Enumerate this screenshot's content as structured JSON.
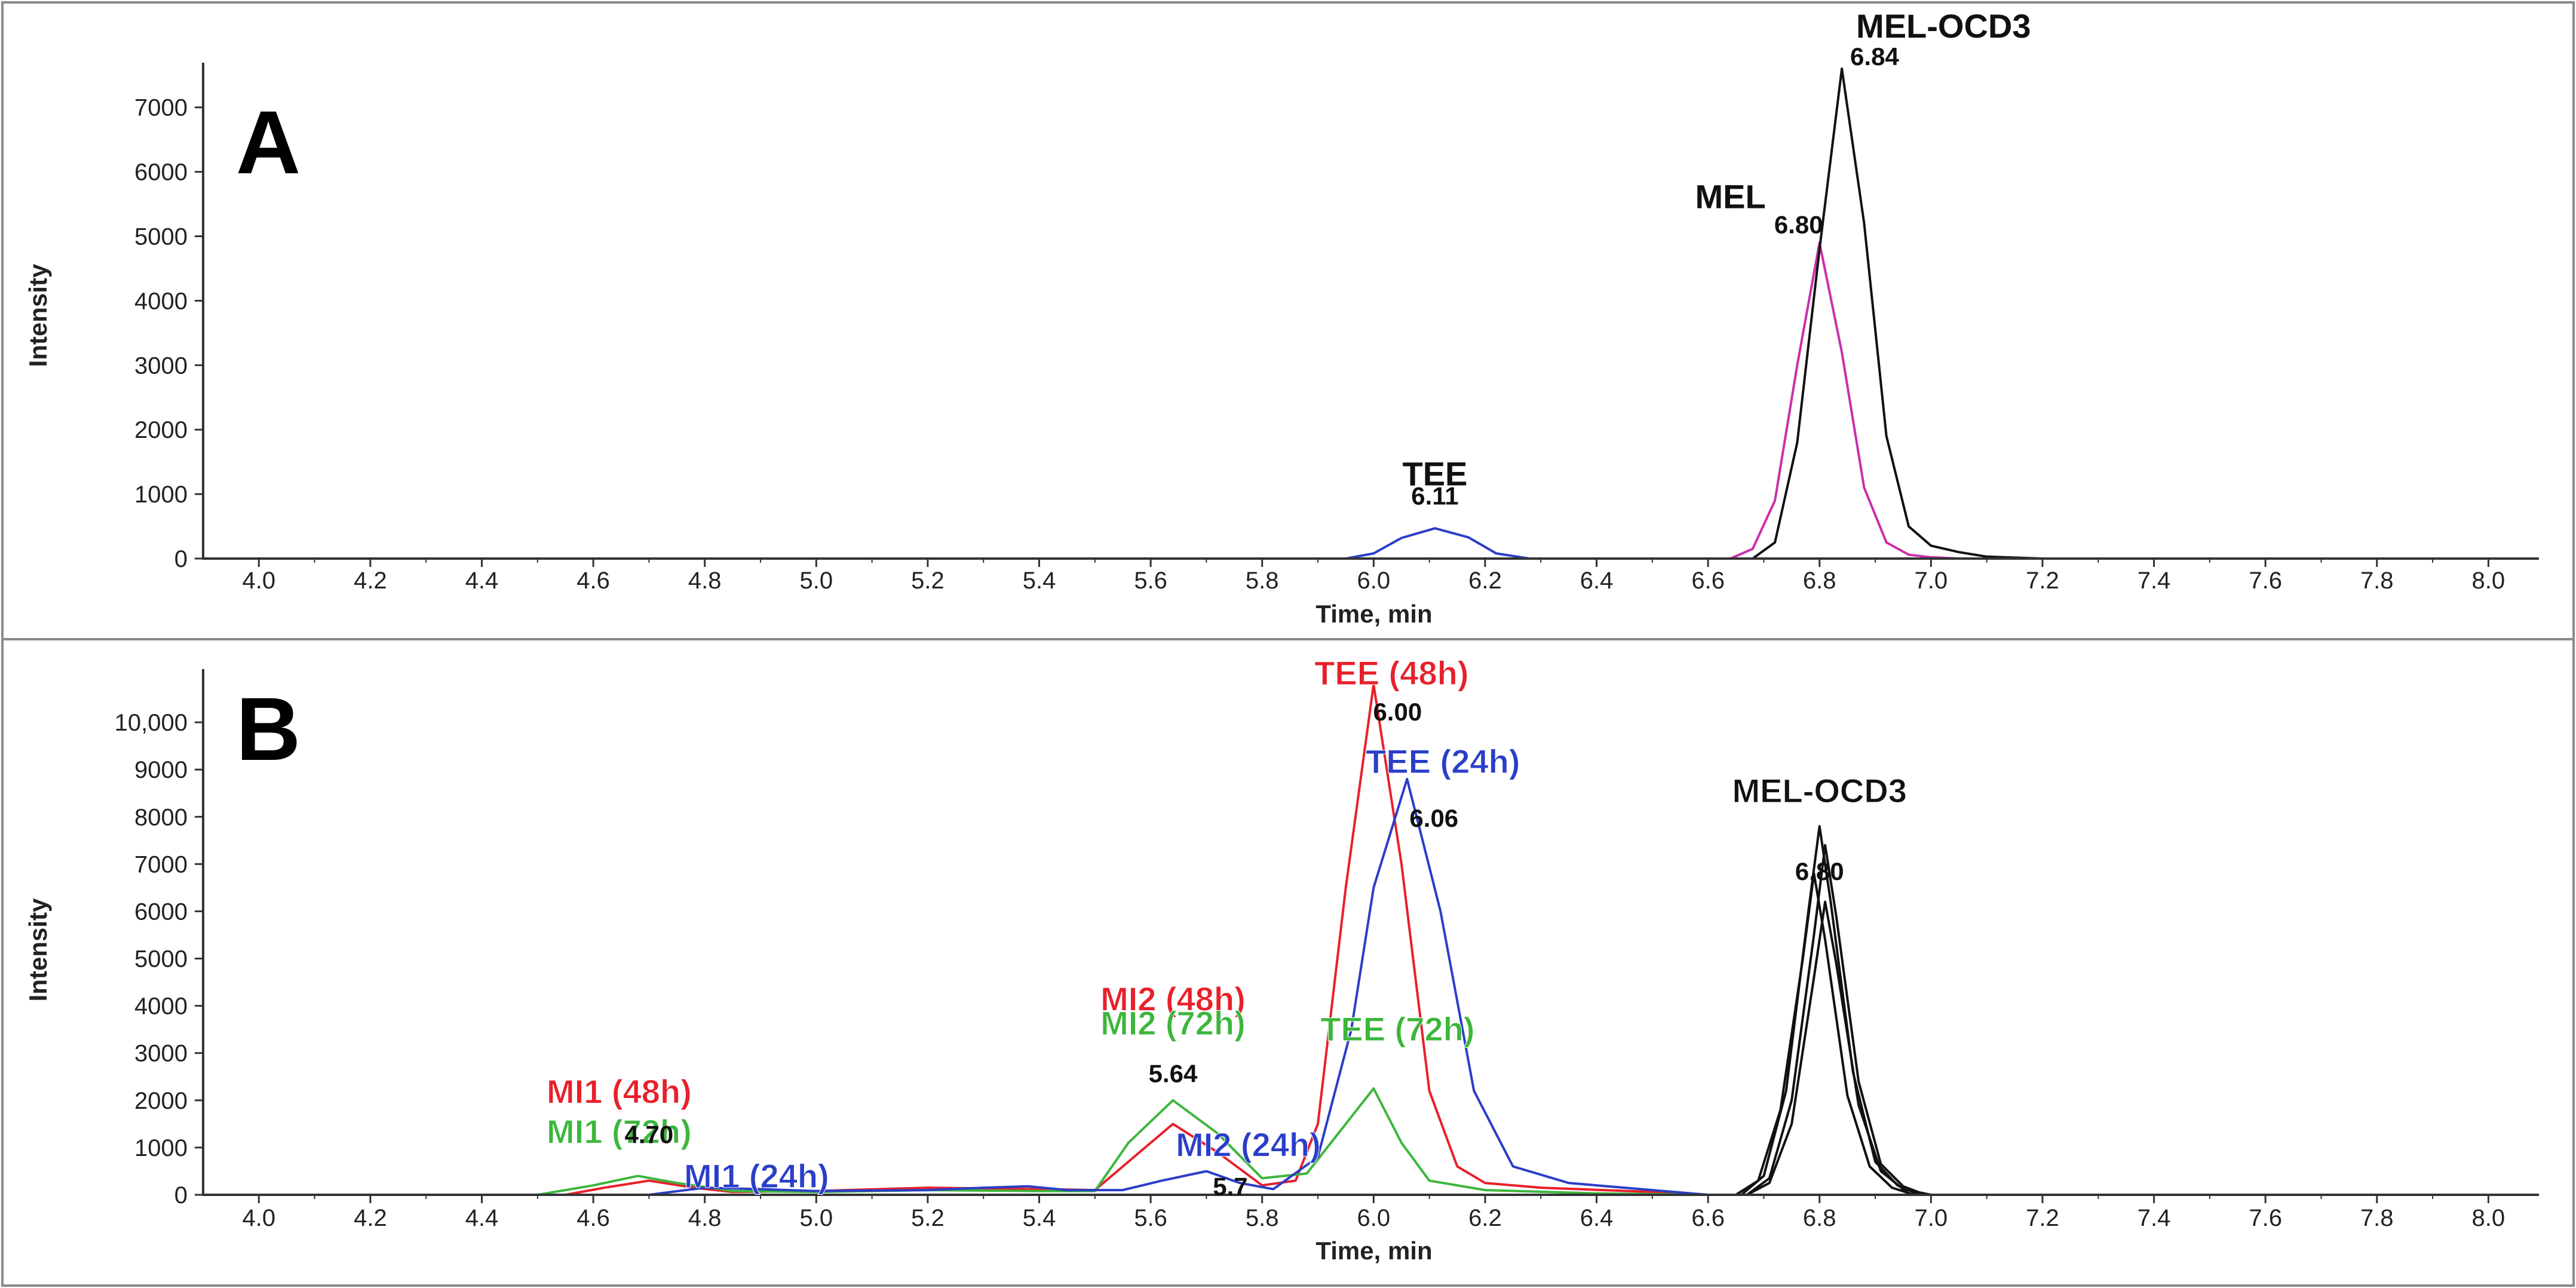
{
  "chart_data": [
    {
      "type": "line",
      "panel_label": "A",
      "xlabel": "Time, min",
      "ylabel": "Intensity",
      "xlim": [
        3.9,
        8.08
      ],
      "ylim": [
        0,
        7600
      ],
      "x_ticks": [
        "4.0",
        "4.2",
        "4.4",
        "4.6",
        "4.8",
        "5.0",
        "5.2",
        "5.4",
        "5.6",
        "5.8",
        "6.0",
        "6.2",
        "6.4",
        "6.6",
        "6.8",
        "7.0",
        "7.2",
        "7.4",
        "7.6",
        "7.8",
        "8.0"
      ],
      "y_ticks": [
        "0",
        "1000",
        "2000",
        "3000",
        "4000",
        "5000",
        "6000",
        "7000"
      ],
      "y_tick_values": [
        0,
        1000,
        2000,
        3000,
        4000,
        5000,
        6000,
        7000
      ],
      "series": [
        {
          "name": "MEL",
          "color": "#cc2fa8",
          "x": [
            3.9,
            6.64,
            6.68,
            6.72,
            6.76,
            6.8,
            6.84,
            6.88,
            6.92,
            6.96,
            7.0,
            7.05,
            8.08
          ],
          "y": [
            0,
            0,
            150,
            900,
            3000,
            4900,
            3200,
            1100,
            250,
            60,
            20,
            0,
            0
          ]
        },
        {
          "name": "MEL-OCD3",
          "color": "#111111",
          "x": [
            3.9,
            6.68,
            6.72,
            6.76,
            6.8,
            6.84,
            6.88,
            6.92,
            6.96,
            7.0,
            7.05,
            7.1,
            7.2,
            8.08
          ],
          "y": [
            0,
            0,
            250,
            1800,
            4800,
            7600,
            5200,
            1900,
            500,
            200,
            100,
            30,
            0,
            0
          ]
        },
        {
          "name": "TEE",
          "color": "#2a3ec8",
          "x": [
            3.9,
            5.95,
            6.0,
            6.05,
            6.11,
            6.17,
            6.22,
            6.28,
            8.08
          ],
          "y": [
            0,
            0,
            80,
            320,
            470,
            330,
            80,
            0,
            0
          ]
        }
      ],
      "annotations": [
        {
          "text": "MEL-OCD3",
          "rt": "6.84",
          "color": "#111111",
          "x": 6.84,
          "y": 7600
        },
        {
          "text": "MEL",
          "rt": "6.80",
          "color": "#111111",
          "x": 6.8,
          "y": 4900
        },
        {
          "text": "TEE",
          "rt": "6.11",
          "color": "#111111",
          "x": 6.11,
          "y": 470
        }
      ]
    },
    {
      "type": "line",
      "panel_label": "B",
      "xlabel": "Time, min",
      "ylabel": "Intensity",
      "xlim": [
        3.9,
        8.08
      ],
      "ylim": [
        0,
        11000
      ],
      "x_ticks": [
        "4.0",
        "4.2",
        "4.4",
        "4.6",
        "4.8",
        "5.0",
        "5.2",
        "5.4",
        "5.6",
        "5.8",
        "6.0",
        "6.2",
        "6.4",
        "6.6",
        "6.8",
        "7.0",
        "7.2",
        "7.4",
        "7.6",
        "7.8",
        "8.0"
      ],
      "y_ticks": [
        "0",
        "1000",
        "2000",
        "3000",
        "4000",
        "5000",
        "6000",
        "7000",
        "8000",
        "9000",
        "10,000"
      ],
      "y_tick_values": [
        0,
        1000,
        2000,
        3000,
        4000,
        5000,
        6000,
        7000,
        8000,
        9000,
        10000
      ],
      "series": [
        {
          "name": "48h",
          "color": "#e8202a",
          "x": [
            3.9,
            4.55,
            4.62,
            4.7,
            4.78,
            4.85,
            5.0,
            5.2,
            5.4,
            5.5,
            5.56,
            5.64,
            5.72,
            5.8,
            5.86,
            5.9,
            5.95,
            6.0,
            6.05,
            6.1,
            6.15,
            6.2,
            6.3,
            6.5,
            6.6,
            8.08
          ],
          "y": [
            0,
            0,
            150,
            300,
            150,
            60,
            80,
            150,
            120,
            100,
            700,
            1500,
            900,
            200,
            300,
            1500,
            6500,
            10800,
            7000,
            2200,
            600,
            250,
            150,
            60,
            0,
            0
          ]
        },
        {
          "name": "72h",
          "color": "#3cb63c",
          "x": [
            3.9,
            4.5,
            4.6,
            4.68,
            4.75,
            4.85,
            5.0,
            5.2,
            5.4,
            5.5,
            5.56,
            5.64,
            5.72,
            5.8,
            5.88,
            5.95,
            6.0,
            6.05,
            6.1,
            6.2,
            6.4,
            6.6,
            8.08
          ],
          "y": [
            0,
            0,
            200,
            400,
            250,
            80,
            60,
            100,
            80,
            80,
            1100,
            2000,
            1300,
            350,
            450,
            1500,
            2250,
            1100,
            300,
            100,
            30,
            0,
            0
          ]
        },
        {
          "name": "24h",
          "color": "#2a3ec8",
          "x": [
            3.9,
            4.7,
            4.8,
            4.9,
            5.0,
            5.2,
            5.3,
            5.38,
            5.45,
            5.55,
            5.62,
            5.7,
            5.76,
            5.82,
            5.9,
            5.96,
            6.0,
            6.06,
            6.12,
            6.18,
            6.25,
            6.35,
            6.5,
            6.6,
            8.08
          ],
          "y": [
            0,
            0,
            150,
            120,
            80,
            100,
            150,
            180,
            100,
            100,
            300,
            500,
            250,
            120,
            800,
            3500,
            6500,
            8800,
            6000,
            2200,
            600,
            250,
            100,
            0,
            0
          ]
        },
        {
          "name": "MEL-OCD3 (1)",
          "color": "#111111",
          "x": [
            3.9,
            6.66,
            6.7,
            6.74,
            6.78,
            6.8,
            6.82,
            6.86,
            6.9,
            6.94,
            6.98,
            8.08
          ],
          "y": [
            0,
            0,
            400,
            2200,
            6000,
            7800,
            6200,
            2600,
            700,
            200,
            0,
            0
          ]
        },
        {
          "name": "MEL-OCD3 (2)",
          "color": "#111111",
          "x": [
            3.9,
            6.67,
            6.71,
            6.75,
            6.79,
            6.81,
            6.83,
            6.87,
            6.91,
            6.95,
            6.99,
            8.08
          ],
          "y": [
            0,
            0,
            350,
            2000,
            5500,
            7400,
            5900,
            2400,
            650,
            180,
            0,
            0
          ]
        },
        {
          "name": "MEL-OCD3 (3)",
          "color": "#111111",
          "x": [
            3.9,
            6.65,
            6.69,
            6.73,
            6.77,
            6.79,
            6.81,
            6.85,
            6.89,
            6.93,
            6.97,
            8.08
          ],
          "y": [
            0,
            0,
            300,
            1800,
            5000,
            6800,
            5400,
            2100,
            600,
            150,
            0,
            0
          ]
        },
        {
          "name": "MEL-OCD3 (4)",
          "color": "#111111",
          "x": [
            3.9,
            6.67,
            6.71,
            6.75,
            6.79,
            6.81,
            6.83,
            6.87,
            6.91,
            6.95,
            7.0,
            8.08
          ],
          "y": [
            0,
            0,
            250,
            1500,
            4600,
            6200,
            4900,
            1900,
            500,
            120,
            0,
            0
          ]
        }
      ],
      "annotations": [
        {
          "text": "TEE (48h)",
          "color": "#e8202a",
          "x": 6.0,
          "y": 10800
        },
        {
          "text": "TEE (24h)",
          "color": "#2a3ec8",
          "x": 6.06,
          "y": 8800
        },
        {
          "text": "MEL-OCD3",
          "color": "#111111",
          "x": 6.8,
          "y": 7800
        },
        {
          "text": "MI2 (48h)",
          "color": "#e8202a",
          "x": 5.64,
          "y": 1500
        },
        {
          "text": "MI2 (72h)",
          "color": "#3cb63c",
          "x": 5.64,
          "y": 2000
        },
        {
          "text": "TEE (72h)",
          "color": "#3cb63c",
          "x": 6.0,
          "y": 2250
        },
        {
          "text": "MI2 (24h)",
          "color": "#2a3ec8",
          "x": 5.7,
          "y": 500
        },
        {
          "text": "MI1 (48h)",
          "color": "#e8202a",
          "x": 4.7,
          "y": 300
        },
        {
          "text": "MI1 (72h)",
          "color": "#3cb63c",
          "x": 4.7,
          "y": 400
        },
        {
          "text": "MI1 (24h)",
          "color": "#2a3ec8",
          "x": 4.85,
          "y": 150
        }
      ],
      "retention_times": [
        {
          "text": "6.00",
          "x": 6.0
        },
        {
          "text": "6.06",
          "x": 6.06
        },
        {
          "text": "6.80",
          "x": 6.8
        },
        {
          "text": "5.64",
          "x": 5.64
        },
        {
          "text": "5.7",
          "x": 5.7
        },
        {
          "text": "4.70",
          "x": 4.7
        }
      ]
    }
  ]
}
